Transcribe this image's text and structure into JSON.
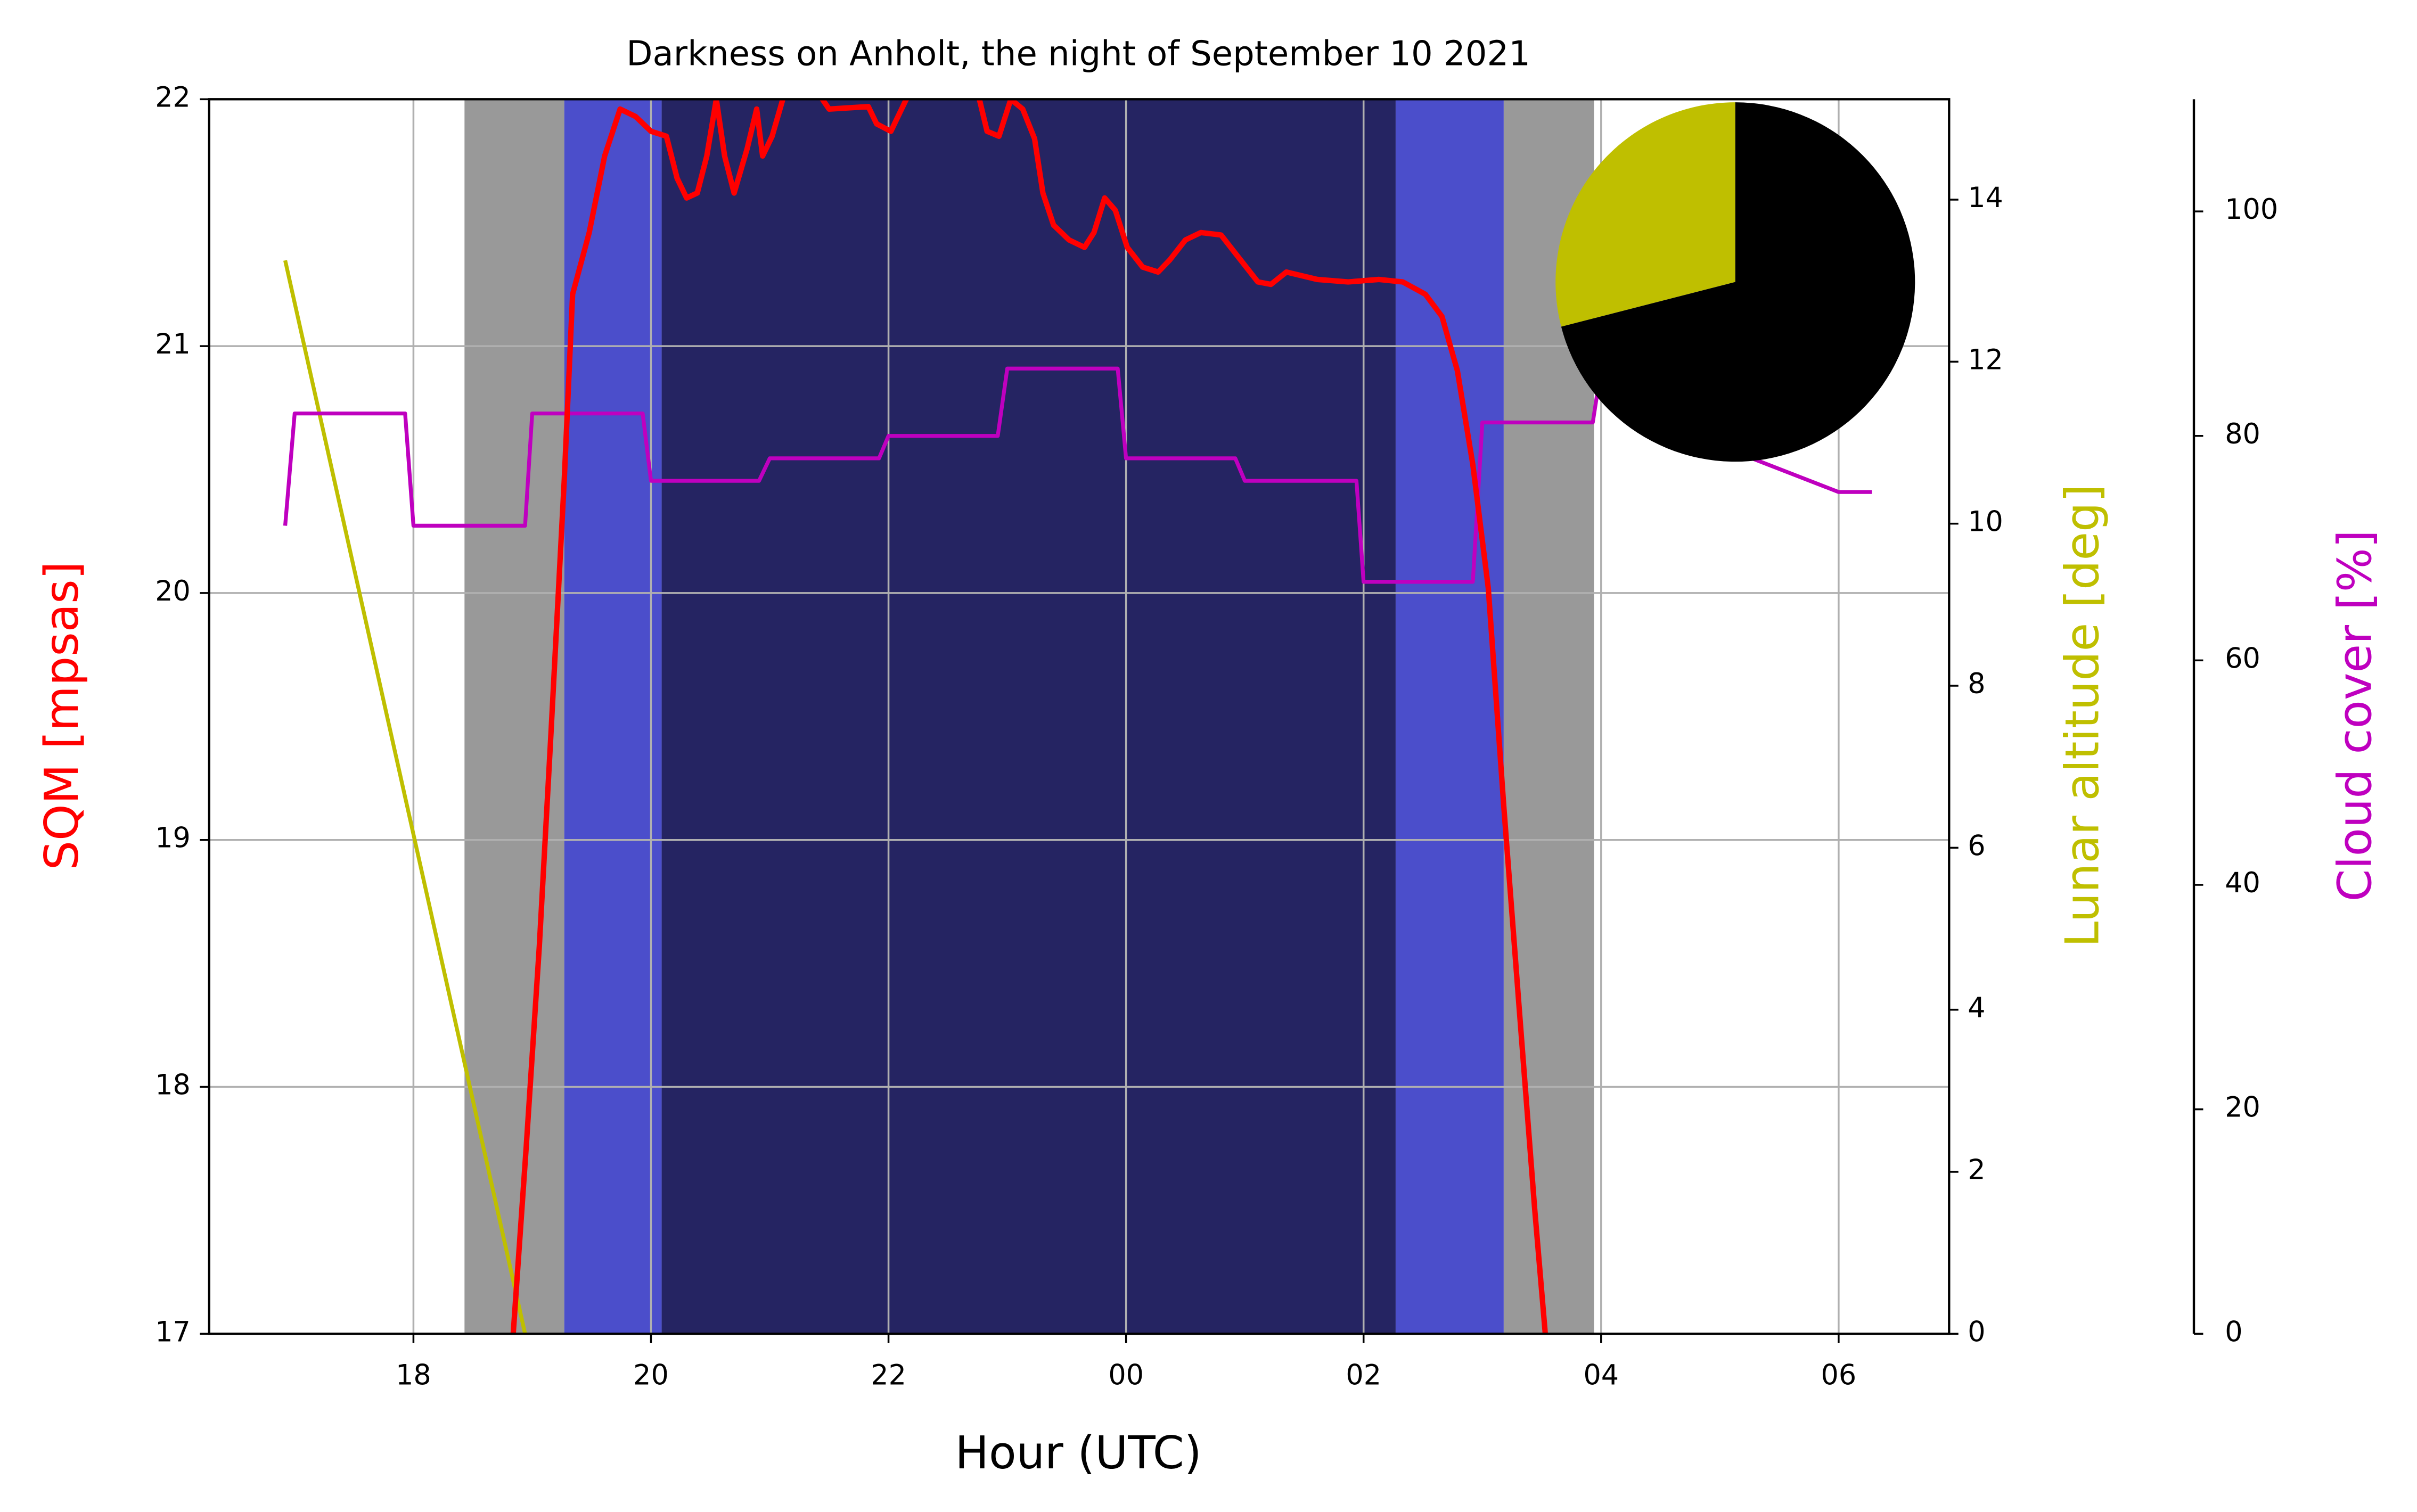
{
  "chart_data": [
    {
      "type": "line",
      "title": "Darkness on Anholt, the night of September 10 2021",
      "xlabel": "Hour (UTC)",
      "ylabel": "SQM [mpsas]",
      "y2label": "Lunar altitude [deg]",
      "y3label": "Cloud cover [%]",
      "xlim": [
        16.28,
        30.93
      ],
      "xticks": [
        18,
        20,
        22,
        {
          "value": 24,
          "label": "00"
        },
        {
          "value": 26,
          "label": "02"
        },
        {
          "value": 28,
          "label": "04"
        },
        {
          "value": 30,
          "label": "06"
        }
      ],
      "ylim": [
        17,
        22
      ],
      "yticks": [
        17,
        18,
        19,
        20,
        21,
        22
      ],
      "y2lim": [
        0,
        15.24
      ],
      "y2ticks": [
        0,
        2,
        4,
        6,
        8,
        10,
        12,
        14
      ],
      "y3lim": [
        0,
        110
      ],
      "y3ticks": [
        0,
        20,
        40,
        60,
        80,
        100
      ],
      "grid": true,
      "bands": [
        {
          "start": 18.43,
          "end": 19.27,
          "color": "#999999"
        },
        {
          "start": 19.27,
          "end": 20.09,
          "color": "#4b4ecb"
        },
        {
          "start": 20.09,
          "end": 26.27,
          "color": "#252462"
        },
        {
          "start": 26.27,
          "end": 27.18,
          "color": "#4b4ecb"
        },
        {
          "start": 27.18,
          "end": 27.94,
          "color": "#999999"
        }
      ],
      "series": [
        {
          "color": "#bfbf00",
          "axis": "y2",
          "x": [
            16.92,
            18.94
          ],
          "values": [
            13.25,
            0
          ]
        },
        {
          "color": "#bf00bf",
          "axis": "y3",
          "x": [
            16.92,
            17.0,
            17.93,
            18.0,
            18.94,
            19.0,
            19.93,
            20.0,
            20.91,
            21.0,
            21.92,
            22.0,
            22.92,
            23.0,
            23.93,
            24.0,
            24.92,
            25.0,
            25.94,
            26.0,
            26.92,
            27.0,
            27.93,
            28.0,
            28.87,
            29.27,
            30.0,
            30.28
          ],
          "values": [
            72,
            82,
            82,
            72,
            72,
            82,
            82,
            76,
            76,
            78,
            78,
            80,
            80,
            86,
            86,
            78,
            78,
            76,
            76,
            67,
            67,
            81.2,
            81.2,
            86,
            86,
            78,
            75,
            75
          ]
        },
        {
          "color": "#ff0000",
          "axis": "y",
          "x": [
            18.84,
            18.95,
            19.06,
            19.16,
            19.27,
            19.34,
            19.48,
            19.61,
            19.74,
            19.87,
            20.0,
            20.13,
            20.22,
            20.3,
            20.39,
            20.47,
            20.55,
            20.62,
            20.7,
            20.81,
            20.89,
            20.94,
            21.02,
            21.11,
            21.3,
            21.5,
            21.83,
            21.9,
            22.02,
            22.15,
            22.4,
            22.74,
            22.83,
            22.93,
            23.03,
            23.13,
            23.23,
            23.3,
            23.39,
            23.52,
            23.65,
            23.73,
            23.82,
            23.91,
            24.01,
            24.14,
            24.27,
            24.37,
            24.5,
            24.63,
            24.8,
            24.93,
            25.11,
            25.22,
            25.35,
            25.61,
            25.87,
            26.13,
            26.33,
            26.52,
            26.66,
            26.79,
            26.92,
            27.05,
            27.18,
            27.31,
            27.44,
            27.53
          ],
          "values": [
            17.0,
            17.76,
            18.57,
            19.45,
            20.46,
            21.21,
            21.46,
            21.77,
            21.96,
            21.93,
            21.87,
            21.85,
            21.68,
            21.6,
            21.62,
            21.77,
            22.0,
            21.77,
            21.62,
            21.8,
            21.96,
            21.77,
            21.85,
            22.0,
            22.1,
            21.96,
            21.97,
            21.9,
            21.87,
            22.0,
            22.1,
            22.05,
            21.87,
            21.85,
            22.0,
            21.96,
            21.84,
            21.62,
            21.49,
            21.43,
            21.4,
            21.46,
            21.6,
            21.55,
            21.4,
            21.32,
            21.3,
            21.35,
            21.43,
            21.46,
            21.45,
            21.37,
            21.26,
            21.25,
            21.3,
            21.27,
            21.26,
            21.27,
            21.26,
            21.21,
            21.12,
            20.9,
            20.52,
            20.02,
            19.14,
            18.32,
            17.51,
            17.0
          ]
        }
      ]
    },
    {
      "type": "pie",
      "values": [
        29,
        71
      ],
      "colors": [
        "#bfbf00",
        "#000000"
      ]
    }
  ]
}
